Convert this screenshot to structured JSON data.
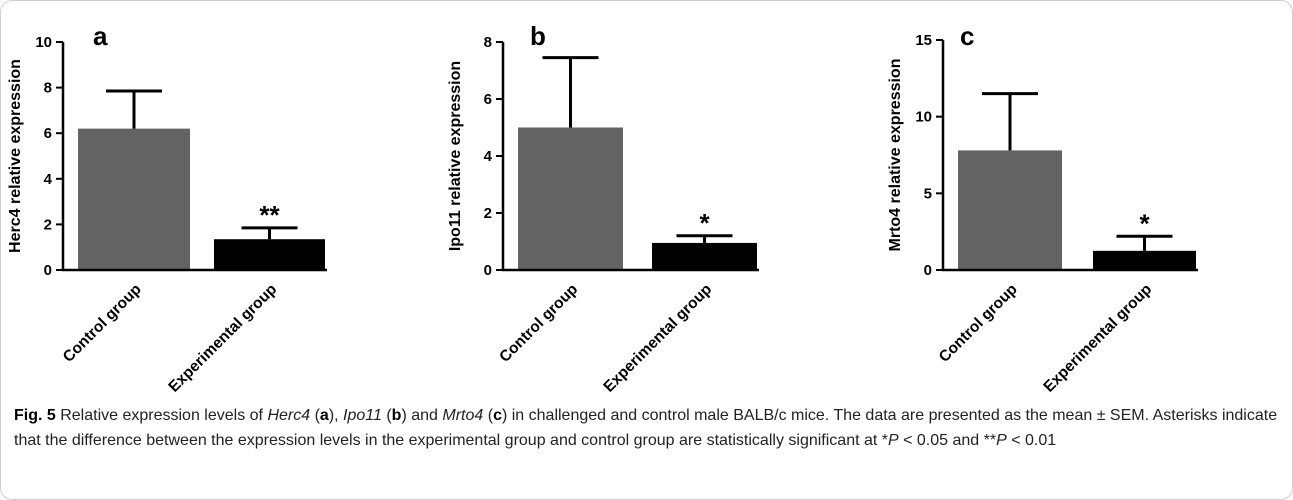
{
  "chart_data": [
    {
      "type": "bar",
      "panel": "a",
      "ylabel": "Herc4 relative expression",
      "categories": [
        "Control group",
        "Experimental group"
      ],
      "values": [
        6.2,
        1.35
      ],
      "errors": [
        1.65,
        0.5
      ],
      "significance": [
        "",
        "**"
      ],
      "colors": [
        "#636363",
        "#000000"
      ],
      "ylim": [
        0,
        10
      ],
      "yticks": [
        0,
        2,
        4,
        6,
        8,
        10
      ]
    },
    {
      "type": "bar",
      "panel": "b",
      "ylabel": "Ipo11 relative expression",
      "categories": [
        "Control group",
        "Experimental group"
      ],
      "values": [
        5.0,
        0.95
      ],
      "errors": [
        2.45,
        0.25
      ],
      "significance": [
        "",
        "*"
      ],
      "colors": [
        "#636363",
        "#000000"
      ],
      "ylim": [
        0,
        8
      ],
      "yticks": [
        0,
        2,
        4,
        6,
        8
      ]
    },
    {
      "type": "bar",
      "panel": "c",
      "ylabel": "Mrto4 relative expression",
      "categories": [
        "Control group",
        "Experimental group"
      ],
      "values": [
        7.8,
        1.25
      ],
      "errors": [
        3.7,
        0.95
      ],
      "significance": [
        "",
        "*"
      ],
      "colors": [
        "#636363",
        "#000000"
      ],
      "ylim": [
        0,
        15
      ],
      "yticks": [
        0,
        5,
        10,
        15
      ]
    }
  ],
  "caption": {
    "label": "Fig. 5",
    "parts": [
      {
        "t": "  Relative expression levels of ",
        "s": ""
      },
      {
        "t": "Herc4",
        "s": "i"
      },
      {
        "t": " (",
        "s": ""
      },
      {
        "t": "a",
        "s": "b"
      },
      {
        "t": "), ",
        "s": ""
      },
      {
        "t": "Ipo11",
        "s": "i"
      },
      {
        "t": " (",
        "s": ""
      },
      {
        "t": "b",
        "s": "b"
      },
      {
        "t": ") and ",
        "s": ""
      },
      {
        "t": "Mrto4",
        "s": "i"
      },
      {
        "t": " (",
        "s": ""
      },
      {
        "t": "c",
        "s": "b"
      },
      {
        "t": ") in challenged and control male BALB/c mice. The data are presented as the mean ± SEM. Asterisks indicate that the difference between the expression levels in the experimental group and control group are statistically significant at *",
        "s": ""
      },
      {
        "t": "P",
        "s": "i"
      },
      {
        "t": " < 0.05 and **",
        "s": ""
      },
      {
        "t": "P",
        "s": "i"
      },
      {
        "t": " < 0.01",
        "s": ""
      }
    ]
  }
}
